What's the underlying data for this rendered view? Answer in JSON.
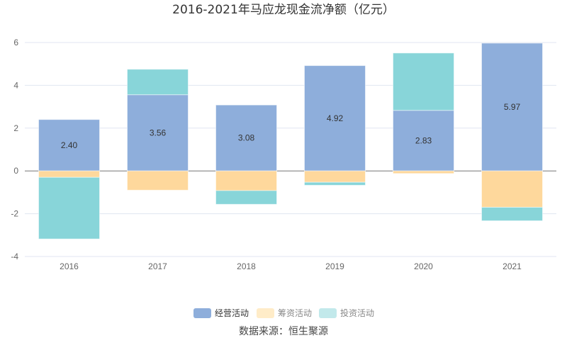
{
  "chart_data": {
    "type": "bar",
    "stacked": true,
    "title": "2016-2021年马应龙现金流净额（亿元）",
    "xlabel": "",
    "ylabel": "",
    "ylim": [
      -4,
      6
    ],
    "yticks": [
      -4,
      -2,
      0,
      2,
      4,
      6
    ],
    "grid": true,
    "legend_placement": "bottom",
    "categories": [
      "2016",
      "2017",
      "2018",
      "2019",
      "2020",
      "2021"
    ],
    "series": [
      {
        "name": "经营活动",
        "color": "#8eaedb",
        "legend_color": "#8eaedb",
        "values": [
          2.4,
          3.56,
          3.08,
          4.92,
          2.83,
          5.97
        ],
        "labels": [
          "2.40",
          "3.56",
          "3.08",
          "4.92",
          "2.83",
          "5.97"
        ]
      },
      {
        "name": "筹资活动",
        "color": "#fed89c",
        "legend_color": "#ffecc8",
        "values": [
          -0.3,
          -0.9,
          -0.92,
          -0.53,
          -0.12,
          -1.7
        ]
      },
      {
        "name": "投资活动",
        "color": "#88d5d9",
        "legend_color": "#c2e9eb",
        "values": [
          -2.88,
          1.19,
          -0.64,
          -0.14,
          2.68,
          -0.63
        ]
      }
    ],
    "source": "数据来源：恒生聚源"
  }
}
